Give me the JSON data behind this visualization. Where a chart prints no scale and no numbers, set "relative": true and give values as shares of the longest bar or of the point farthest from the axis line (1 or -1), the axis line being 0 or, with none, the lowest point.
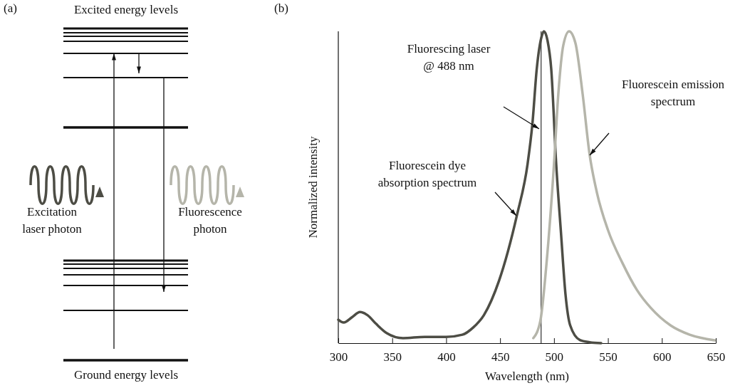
{
  "chart_data": [
    {
      "type": "other",
      "title": "(a)",
      "annotations": [
        "Excited energy levels",
        "Excitation\nlaser photon",
        "Fluorescence\nphoton",
        "Ground energy levels"
      ]
    },
    {
      "type": "line",
      "title": "(b)",
      "xlabel": "Wavelength (nm)",
      "ylabel": "Normalized intensity",
      "relative": true,
      "xlim": [
        300,
        650
      ],
      "xticks": [
        300,
        350,
        400,
        450,
        500,
        550,
        600,
        650
      ],
      "grid": false,
      "series": [
        {
          "color": "#4d4d45",
          "x": [
            300,
            305,
            313,
            320,
            327,
            335,
            345,
            360,
            380,
            400,
            415,
            425,
            435,
            449,
            465.6,
            475.5,
            480,
            484,
            488.7,
            490.7,
            494,
            497.4,
            502,
            506.6,
            510.6,
            515,
            524,
            533,
            543.7
          ],
          "values": [
            0.075,
            0.066,
            0.084,
            0.1,
            0.09,
            0.062,
            0.032,
            0.016,
            0.02,
            0.02,
            0.027,
            0.05,
            0.09,
            0.2,
            0.41,
            0.575,
            0.705,
            0.88,
            0.986,
            1,
            0.97,
            0.88,
            0.575,
            0.347,
            0.158,
            0.057,
            0.01,
            0.003,
            0
          ]
        },
        {
          "color": "#b5b5aa",
          "x": [
            480.8,
            487.4,
            493.4,
            500,
            504,
            508.6,
            514,
            519.8,
            526.5,
            533,
            539.7,
            550,
            563.6,
            576.8,
            590,
            608,
            625.8,
            649
          ],
          "values": [
            0.016,
            0.073,
            0.27,
            0.575,
            0.8,
            0.955,
            1,
            0.963,
            0.8,
            0.605,
            0.484,
            0.363,
            0.256,
            0.171,
            0.112,
            0.057,
            0.027,
            0.009
          ]
        }
      ],
      "ref_lines": [
        {
          "axis": "x",
          "value": 488,
          "color": "#555555"
        }
      ],
      "annotations": [
        "Fluorescing laser\n@ 488 nm",
        "Fluorescein dye\nabsorption spectrum",
        "Fluorescein emission\nspectrum"
      ]
    }
  ]
}
